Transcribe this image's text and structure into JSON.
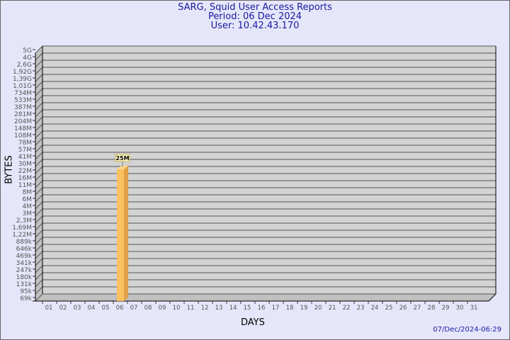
{
  "header": {
    "title": "SARG, Squid User Access Reports",
    "period": "Period: 06 Dec 2024",
    "user": "User: 10.42.43.170"
  },
  "footer": {
    "generated": "07/Dec/2024-06:29"
  },
  "colors": {
    "background": "#e6e6fa",
    "plot": "#d3d3d3",
    "wall": "#c0c0c0",
    "bar": "#fbc060",
    "bar_side": "#e0a048",
    "title": "#1a1aa0"
  },
  "chart_data": {
    "type": "bar",
    "title": "SARG, Squid User Access Reports",
    "xlabel": "DAYS",
    "ylabel": "BYTES",
    "y_scale": "log",
    "grid": true,
    "y_ticks": [
      "5G",
      "4G",
      "2,6G",
      "1,92G",
      "1,39G",
      "1,01G",
      "734M",
      "533M",
      "387M",
      "281M",
      "204M",
      "148M",
      "108M",
      "78M",
      "57M",
      "41M",
      "30M",
      "22M",
      "16M",
      "11M",
      "8M",
      "6M",
      "4M",
      "3M",
      "2,3M",
      "1,69M",
      "1,22M",
      "889k",
      "646k",
      "469k",
      "341k",
      "247k",
      "180k",
      "131k",
      "95k",
      "69k"
    ],
    "categories": [
      "01",
      "02",
      "03",
      "04",
      "05",
      "06",
      "07",
      "08",
      "09",
      "10",
      "11",
      "12",
      "13",
      "14",
      "15",
      "16",
      "17",
      "18",
      "19",
      "20",
      "21",
      "22",
      "23",
      "24",
      "25",
      "26",
      "27",
      "28",
      "29",
      "30",
      "31"
    ],
    "bars": [
      {
        "day": "06",
        "value": "25M",
        "label": "25M"
      }
    ]
  }
}
